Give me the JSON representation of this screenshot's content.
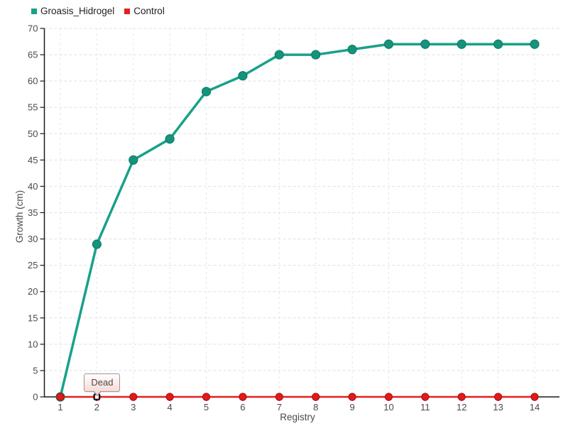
{
  "chart_data": {
    "type": "line",
    "x": [
      1,
      2,
      3,
      4,
      5,
      6,
      7,
      8,
      9,
      10,
      11,
      12,
      13,
      14
    ],
    "xlabel": "Registry",
    "ylabel": "Growth (cm)",
    "ylim": [
      0,
      70
    ],
    "ytick_step": 5,
    "grid": true,
    "legend_position": "top-left",
    "series": [
      {
        "name": "Groasis_Hidrogel",
        "color": "#18A189",
        "marker_color": "#15947B",
        "marker_stroke": "#0E7D68",
        "line_width": 3.5,
        "marker_radius": 6,
        "values": [
          0,
          29,
          45,
          49,
          58,
          61,
          65,
          65,
          66,
          67,
          67,
          67,
          67,
          67
        ]
      },
      {
        "name": "Control",
        "color": "#E22020",
        "marker_color": "#DF1B1B",
        "marker_stroke": "#B31212",
        "line_width": 2.5,
        "marker_radius": 5,
        "values": [
          0,
          0,
          0,
          0,
          0,
          0,
          0,
          0,
          0,
          0,
          0,
          0,
          0,
          0
        ]
      }
    ],
    "annotation": {
      "text": "Dead",
      "x": 2,
      "y": 0,
      "series": "Control",
      "highlight_marker": "white-square"
    }
  },
  "palette": {
    "background": "#FFFFFF",
    "axis": "#1A1A1A",
    "grid_h": "#E0E0E0",
    "grid_v": "#E5E5E5",
    "tick_text": "#4A4A4A",
    "x_tick_mark": "#555555",
    "tooltip_border": "#999999",
    "tooltip_bg_top": "#FFFFFF",
    "tooltip_bg_bottom": "#F9DAD5",
    "tooltip_text": "#4A4A4A",
    "legend_text": "#222222"
  }
}
